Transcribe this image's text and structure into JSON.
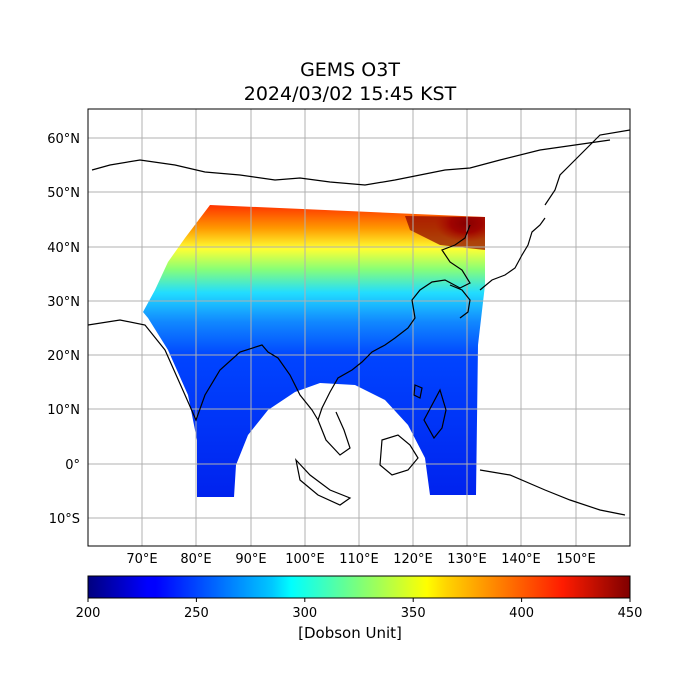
{
  "map": {
    "title_line1": "GEMS O3T",
    "title_line2": "2024/03/02 15:45 KST",
    "lon_ticks": [
      "70°E",
      "80°E",
      "90°E",
      "100°E",
      "110°E",
      "120°E",
      "130°E",
      "140°E",
      "150°E"
    ],
    "lat_ticks": [
      "60°N",
      "50°N",
      "40°N",
      "30°N",
      "20°N",
      "10°N",
      "0°",
      "10°S"
    ],
    "gridlines": true
  },
  "colorbar": {
    "label": "[Dobson Unit]",
    "ticks": [
      "200",
      "250",
      "300",
      "350",
      "400",
      "450"
    ],
    "min": 200,
    "max": 450,
    "colormap": "jet"
  }
}
